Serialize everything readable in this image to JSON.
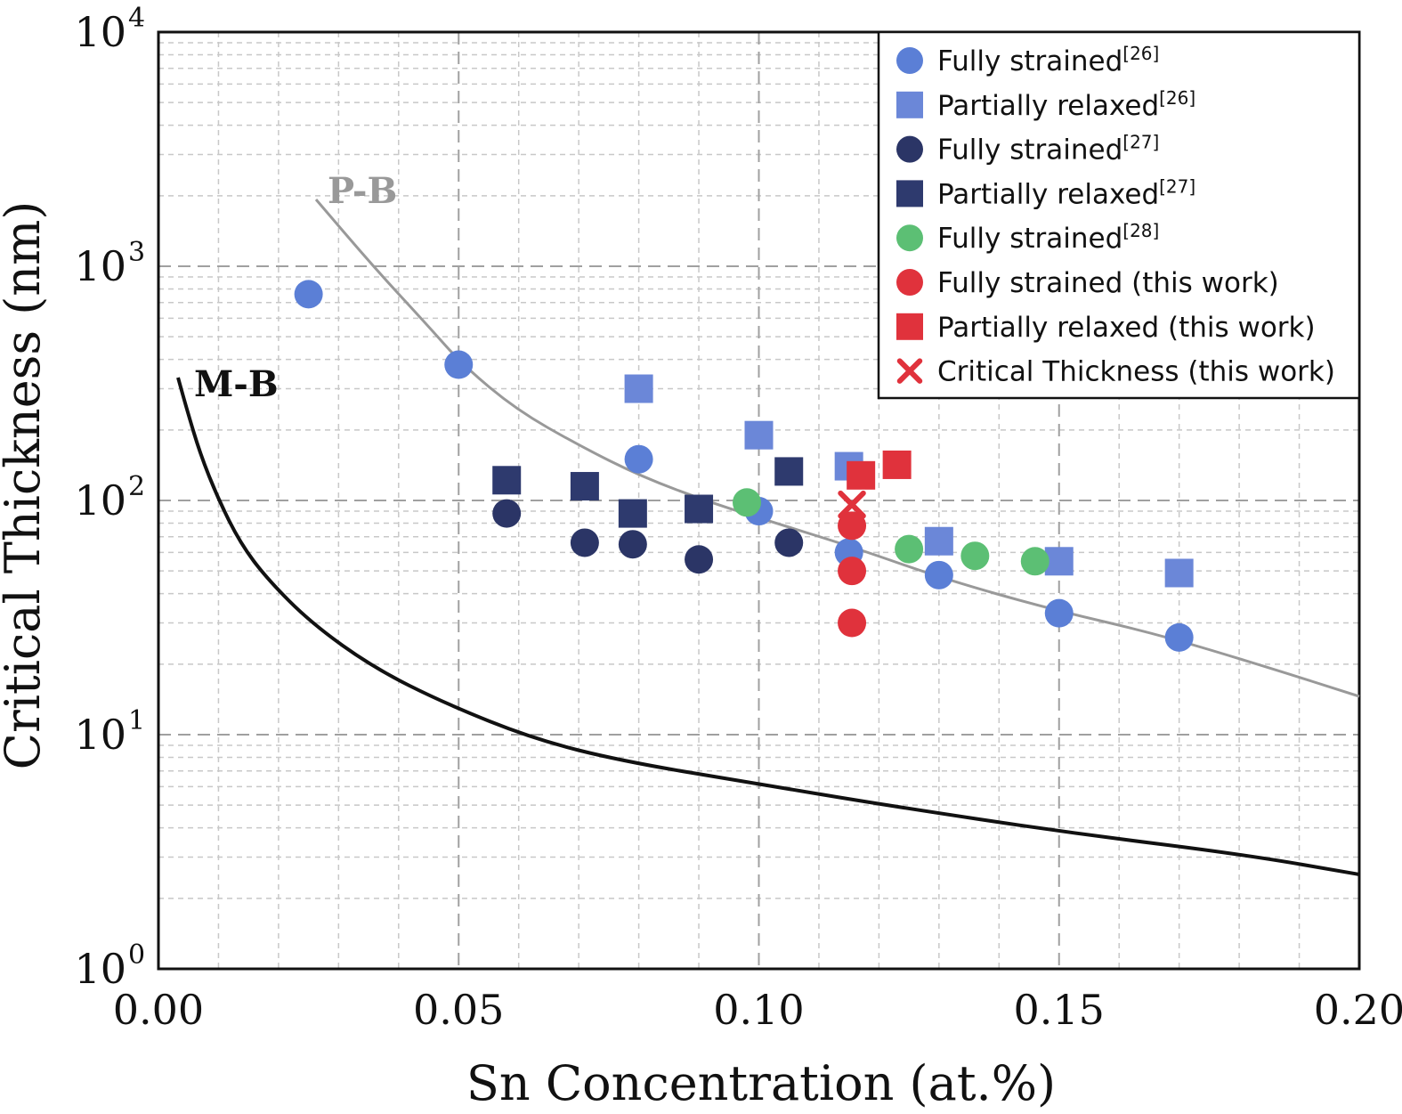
{
  "chart_data": {
    "type": "scatter",
    "title": "",
    "xlabel": "Sn Concentration (at.%)",
    "ylabel": "Critical Thickness (nm)",
    "xlim": [
      0.0,
      0.2
    ],
    "ylim": [
      1,
      10000
    ],
    "yscale": "log",
    "grid": true,
    "legend_position": "top-right",
    "x_ticks": [
      "0.00",
      "0.05",
      "0.10",
      "0.15",
      "0.20"
    ],
    "y_ticks": [
      {
        "base": "10",
        "exp": "0",
        "value": 1
      },
      {
        "base": "10",
        "exp": "1",
        "value": 10
      },
      {
        "base": "10",
        "exp": "2",
        "value": 100
      },
      {
        "base": "10",
        "exp": "3",
        "value": 1000
      },
      {
        "base": "10",
        "exp": "4",
        "value": 10000
      }
    ],
    "series": [
      {
        "name": "Fully strained",
        "ref": "[26]",
        "marker": "circle",
        "color": "#5b7fd6",
        "points": [
          [
            0.025,
            760
          ],
          [
            0.05,
            380
          ],
          [
            0.08,
            150
          ],
          [
            0.1,
            90
          ],
          [
            0.115,
            60
          ],
          [
            0.13,
            48
          ],
          [
            0.15,
            33
          ],
          [
            0.17,
            26
          ]
        ]
      },
      {
        "name": "Partially relaxed",
        "ref": "[26]",
        "marker": "square",
        "color": "#6b87d8",
        "points": [
          [
            0.08,
            300
          ],
          [
            0.1,
            190
          ],
          [
            0.115,
            140
          ],
          [
            0.13,
            67
          ],
          [
            0.15,
            55
          ],
          [
            0.17,
            49
          ]
        ]
      },
      {
        "name": "Fully strained",
        "ref": "[27]",
        "marker": "circle",
        "color": "#2b3566",
        "points": [
          [
            0.058,
            88
          ],
          [
            0.071,
            66
          ],
          [
            0.079,
            65
          ],
          [
            0.09,
            56
          ],
          [
            0.105,
            66
          ]
        ]
      },
      {
        "name": "Partially relaxed",
        "ref": "[27]",
        "marker": "square",
        "color": "#2e3a6e",
        "points": [
          [
            0.058,
            122
          ],
          [
            0.071,
            115
          ],
          [
            0.079,
            88
          ],
          [
            0.09,
            92
          ],
          [
            0.105,
            133
          ]
        ]
      },
      {
        "name": "Fully strained",
        "ref": "[28]",
        "marker": "circle",
        "color": "#5cbf74",
        "points": [
          [
            0.098,
            98
          ],
          [
            0.125,
            62
          ],
          [
            0.136,
            58
          ],
          [
            0.146,
            55
          ]
        ]
      },
      {
        "name": "Fully strained (this work)",
        "ref": "",
        "marker": "circle",
        "color": "#e0323c",
        "points": [
          [
            0.1155,
            78
          ],
          [
            0.1155,
            50
          ],
          [
            0.1155,
            30
          ]
        ]
      },
      {
        "name": "Partially relaxed (this work)",
        "ref": "",
        "marker": "square",
        "color": "#e0323c",
        "points": [
          [
            0.117,
            128
          ],
          [
            0.123,
            142
          ]
        ]
      },
      {
        "name": "Critical Thickness (this work)",
        "ref": "",
        "marker": "x",
        "color": "#e0323c",
        "points": [
          [
            0.1155,
            96
          ]
        ]
      }
    ],
    "curves": [
      {
        "name": "P-B",
        "color": "#999999"
      },
      {
        "name": "M-B",
        "color": "#111111"
      }
    ]
  }
}
